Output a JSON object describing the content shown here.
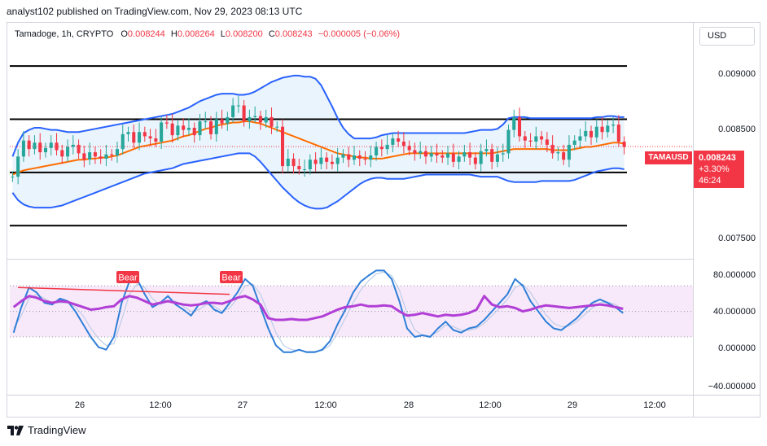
{
  "header": {
    "publisher_line": "analyst102 published on TradingView.com, Nov 29, 2023 08:13 UTC"
  },
  "ohlc": {
    "title": "Tamadoge, 1h, CRYPTO",
    "o_label": "O",
    "o": "0.008244",
    "h_label": "H",
    "h": "0.008264",
    "l_label": "L",
    "l": "0.008200",
    "c_label": "C",
    "c": "0.008243",
    "change": "−0.000005 (−0.06%)"
  },
  "currency_button": "USD",
  "price_axis": [
    "0.009000",
    "0.008500",
    "0.007500"
  ],
  "oscillator_axis": [
    "80.000000",
    "40.000000",
    "0.000000",
    "−40.000000"
  ],
  "time_axis": [
    "26",
    "12:00",
    "27",
    "12:00",
    "28",
    "12:00",
    "29",
    "12:00"
  ],
  "last_price": {
    "symbol": "TAMAUSD",
    "price": "0.008243",
    "change_pct": "+3.30%",
    "countdown": "46:24"
  },
  "annotations": [
    "Bear",
    "Bear"
  ],
  "footer": {
    "brand": "TradingView"
  },
  "colors": {
    "up": "#26a69a",
    "down": "#f23645",
    "bb_band": "#2962ff",
    "bb_basis": "#ff6d00",
    "bb_fill": "#e3f0fb",
    "stoch_k": "#2f7fd8",
    "stoch_d": "#b2c7e4",
    "rsi": "#b13fd6",
    "osc_band_fill": "#f3e0f7",
    "divergence": "#f23645"
  },
  "chart_data": [
    {
      "type": "candlestick",
      "title": "Tamadoge, 1h, CRYPTO",
      "symbol": "TAMAUSD",
      "overlays": [
        "Bollinger Bands (upper, basis, lower)"
      ],
      "horizontal_levels": [
        0.009,
        0.0085,
        0.008,
        0.0075
      ],
      "ylim": [
        0.00725,
        0.0092
      ],
      "x_ticks": [
        "26",
        "12:00",
        "27",
        "12:00",
        "28",
        "12:00",
        "29",
        "12:00"
      ],
      "last": {
        "open": 0.008244,
        "high": 0.008264,
        "low": 0.0082,
        "close": 0.008243
      },
      "close_series": [
        0.00796,
        0.00815,
        0.0083,
        0.00822,
        0.00828,
        0.00819,
        0.00823,
        0.00828,
        0.00821,
        0.00815,
        0.00824,
        0.00826,
        0.00818,
        0.00812,
        0.00819,
        0.00815,
        0.00813,
        0.00817,
        0.00816,
        0.00822,
        0.00836,
        0.00838,
        0.00828,
        0.00838,
        0.00834,
        0.00832,
        0.00829,
        0.00847,
        0.00846,
        0.00835,
        0.00844,
        0.0084,
        0.00842,
        0.00835,
        0.00848,
        0.00848,
        0.00836,
        0.0085,
        0.00846,
        0.00852,
        0.00863,
        0.00863,
        0.00848,
        0.00852,
        0.00853,
        0.00847,
        0.00852,
        0.00843,
        0.00843,
        0.00806,
        0.00813,
        0.00806,
        0.00803,
        0.00803,
        0.00812,
        0.00808,
        0.00814,
        0.0081,
        0.00808,
        0.00814,
        0.00817,
        0.00812,
        0.00816,
        0.00813,
        0.00812,
        0.00816,
        0.00824,
        0.00822,
        0.00826,
        0.00832,
        0.00829,
        0.00825,
        0.00821,
        0.00818,
        0.0082,
        0.00815,
        0.00818,
        0.00816,
        0.00814,
        0.00818,
        0.0081,
        0.00815,
        0.00819,
        0.00814,
        0.00808,
        0.0082,
        0.00822,
        0.0081,
        0.00817,
        0.00818,
        0.0084,
        0.00852,
        0.00834,
        0.0083,
        0.00829,
        0.00834,
        0.00831,
        0.00826,
        0.00818,
        0.00819,
        0.00812,
        0.00826,
        0.0083,
        0.00834,
        0.00839,
        0.00833,
        0.00843,
        0.00838,
        0.00844,
        0.00845,
        0.00829,
        0.00824
      ],
      "bb_upper": [
        0.00815,
        0.00828,
        0.00837,
        0.0084,
        0.00842,
        0.00842,
        0.00841,
        0.0084,
        0.0084,
        0.00839,
        0.00838,
        0.00838,
        0.00838,
        0.00839,
        0.0084,
        0.00841,
        0.00842,
        0.00843,
        0.00844,
        0.00845,
        0.00846,
        0.00847,
        0.00848,
        0.00849,
        0.0085,
        0.00851,
        0.00852,
        0.00853,
        0.00854,
        0.00855,
        0.00857,
        0.00859,
        0.00861,
        0.00864,
        0.00867,
        0.00869,
        0.00871,
        0.00873,
        0.00874,
        0.00874,
        0.00874,
        0.00873,
        0.00873,
        0.00874,
        0.00876,
        0.00879,
        0.00882,
        0.00885,
        0.00887,
        0.00889,
        0.0089,
        0.00891,
        0.00891,
        0.0089,
        0.0089,
        0.00888,
        0.00882,
        0.00872,
        0.00862,
        0.00851,
        0.00842,
        0.00836,
        0.00832,
        0.00832,
        0.00832,
        0.00832,
        0.00833,
        0.00835,
        0.00836,
        0.00837,
        0.00837,
        0.00837,
        0.00837,
        0.00837,
        0.00837,
        0.00837,
        0.00837,
        0.00837,
        0.00837,
        0.00837,
        0.00837,
        0.00837,
        0.00837,
        0.00838,
        0.00839,
        0.0084,
        0.0084,
        0.0084,
        0.00841,
        0.00845,
        0.00851,
        0.00852,
        0.00852,
        0.00852,
        0.00851,
        0.00851,
        0.00851,
        0.00851,
        0.00851,
        0.00851,
        0.00851,
        0.00851,
        0.00851,
        0.00851,
        0.00851,
        0.00851,
        0.00852,
        0.00852,
        0.00853,
        0.00853,
        0.00852,
        0.00852
      ],
      "bb_basis": [
        0.00798,
        0.008,
        0.00802,
        0.00803,
        0.00804,
        0.00805,
        0.00806,
        0.00807,
        0.00808,
        0.00809,
        0.0081,
        0.00811,
        0.00812,
        0.00812,
        0.00813,
        0.00813,
        0.00814,
        0.00814,
        0.00815,
        0.00816,
        0.00818,
        0.0082,
        0.00822,
        0.00824,
        0.00825,
        0.00826,
        0.00827,
        0.00828,
        0.00829,
        0.0083,
        0.00832,
        0.00834,
        0.00835,
        0.00837,
        0.00839,
        0.00841,
        0.00842,
        0.00844,
        0.00845,
        0.00846,
        0.00847,
        0.00847,
        0.00848,
        0.00848,
        0.00847,
        0.00846,
        0.00844,
        0.00842,
        0.0084,
        0.00838,
        0.00836,
        0.00834,
        0.00832,
        0.0083,
        0.00828,
        0.00826,
        0.00824,
        0.00822,
        0.0082,
        0.00818,
        0.00817,
        0.00816,
        0.00815,
        0.00814,
        0.00814,
        0.00813,
        0.00813,
        0.00813,
        0.00814,
        0.00815,
        0.00816,
        0.00817,
        0.00818,
        0.00818,
        0.00818,
        0.00818,
        0.00818,
        0.00818,
        0.00818,
        0.00818,
        0.00818,
        0.00818,
        0.00818,
        0.00818,
        0.00818,
        0.00818,
        0.00818,
        0.00818,
        0.00819,
        0.0082,
        0.00821,
        0.00822,
        0.00822,
        0.00822,
        0.00822,
        0.00822,
        0.00822,
        0.00822,
        0.00821,
        0.00821,
        0.00821,
        0.00821,
        0.00822,
        0.00823,
        0.00824,
        0.00824,
        0.00825,
        0.00826,
        0.00827,
        0.00828,
        0.00828,
        0.00827
      ],
      "bb_lower": [
        0.00781,
        0.00774,
        0.0077,
        0.00768,
        0.00767,
        0.00767,
        0.00767,
        0.00767,
        0.00768,
        0.00769,
        0.00771,
        0.00773,
        0.00775,
        0.00777,
        0.00779,
        0.00781,
        0.00783,
        0.00785,
        0.00787,
        0.00789,
        0.00791,
        0.00793,
        0.00795,
        0.00797,
        0.00799,
        0.008,
        0.00801,
        0.00802,
        0.00803,
        0.00804,
        0.00806,
        0.00808,
        0.00809,
        0.0081,
        0.00811,
        0.00812,
        0.00813,
        0.00814,
        0.00815,
        0.00816,
        0.00817,
        0.00818,
        0.00818,
        0.00818,
        0.00815,
        0.0081,
        0.00804,
        0.00798,
        0.00792,
        0.00786,
        0.00781,
        0.00776,
        0.00772,
        0.00769,
        0.00767,
        0.00766,
        0.00766,
        0.00767,
        0.0077,
        0.00773,
        0.00777,
        0.00781,
        0.00785,
        0.00789,
        0.00792,
        0.00794,
        0.00795,
        0.00795,
        0.00794,
        0.00794,
        0.00794,
        0.00794,
        0.00795,
        0.00796,
        0.00797,
        0.00798,
        0.00798,
        0.00798,
        0.00798,
        0.00798,
        0.00798,
        0.00798,
        0.00798,
        0.00798,
        0.00797,
        0.00796,
        0.00796,
        0.00796,
        0.00796,
        0.00794,
        0.00792,
        0.00791,
        0.00791,
        0.00791,
        0.00791,
        0.00791,
        0.00792,
        0.00792,
        0.00792,
        0.00792,
        0.00792,
        0.00792,
        0.00793,
        0.00795,
        0.00797,
        0.00799,
        0.00801,
        0.00802,
        0.00803,
        0.00804,
        0.00804,
        0.00803
      ]
    },
    {
      "type": "line",
      "title": "",
      "series_unnamed": [
        "stochastic %K",
        "stochastic %D",
        "RSI"
      ],
      "ylim": [
        -45,
        105
      ],
      "y_ticks": [
        80,
        40,
        0,
        -40
      ],
      "band": [
        20,
        80
      ],
      "k": [
        25,
        55,
        78,
        72,
        60,
        58,
        65,
        62,
        50,
        35,
        20,
        8,
        5,
        20,
        60,
        85,
        88,
        70,
        55,
        60,
        68,
        58,
        52,
        45,
        58,
        62,
        52,
        48,
        60,
        72,
        88,
        80,
        55,
        30,
        10,
        2,
        2,
        5,
        2,
        2,
        5,
        15,
        35,
        52,
        72,
        85,
        92,
        98,
        98,
        88,
        62,
        30,
        20,
        22,
        20,
        30,
        38,
        28,
        25,
        30,
        32,
        40,
        50,
        60,
        70,
        88,
        80,
        62,
        50,
        38,
        30,
        28,
        35,
        42,
        52,
        60,
        64,
        60,
        55,
        48
      ],
      "d": [
        30,
        45,
        65,
        70,
        65,
        60,
        60,
        60,
        55,
        45,
        30,
        18,
        10,
        12,
        40,
        70,
        82,
        78,
        65,
        58,
        62,
        62,
        56,
        50,
        52,
        58,
        56,
        50,
        54,
        65,
        80,
        82,
        70,
        48,
        25,
        10,
        5,
        4,
        3,
        3,
        4,
        10,
        25,
        42,
        60,
        75,
        86,
        94,
        96,
        92,
        75,
        48,
        28,
        22,
        21,
        26,
        34,
        32,
        28,
        28,
        30,
        36,
        45,
        54,
        64,
        78,
        82,
        72,
        58,
        46,
        36,
        32,
        33,
        38,
        46,
        54,
        60,
        61,
        58,
        52
      ],
      "rsi": [
        55,
        62,
        68,
        66,
        62,
        60,
        62,
        61,
        58,
        55,
        52,
        53,
        55,
        56,
        64,
        68,
        66,
        62,
        58,
        60,
        62,
        60,
        58,
        57,
        58,
        60,
        60,
        59,
        62,
        66,
        68,
        64,
        58,
        42,
        40,
        40,
        41,
        40,
        40,
        42,
        44,
        48,
        52,
        55,
        56,
        58,
        56,
        56,
        57,
        56,
        50,
        45,
        46,
        48,
        46,
        44,
        46,
        45,
        46,
        48,
        52,
        68,
        58,
        55,
        56,
        54,
        50,
        52,
        55,
        57,
        56,
        55,
        54,
        55,
        56,
        57,
        58,
        57,
        55,
        53
      ]
    }
  ]
}
